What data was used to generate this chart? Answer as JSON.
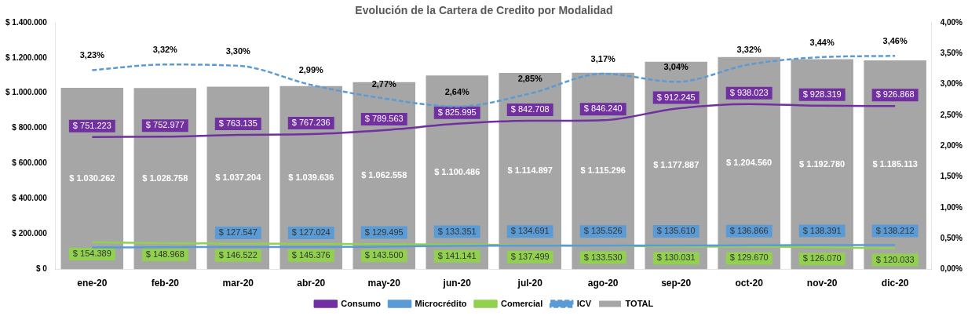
{
  "chart_data": {
    "type": "bar",
    "title": "Evolución de la Cartera de Credito por Modalidad",
    "categories": [
      "ene-20",
      "feb-20",
      "mar-20",
      "abr-20",
      "may-20",
      "jun-20",
      "jul-20",
      "ago-20",
      "sep-20",
      "oct-20",
      "nov-20",
      "dic-20"
    ],
    "series": [
      {
        "name": "TOTAL",
        "color": "#a6a6a6",
        "values": [
          1030262,
          1028758,
          1037204,
          1039636,
          1062558,
          1100486,
          1114897,
          1115296,
          1177887,
          1204560,
          1192780,
          1185113
        ],
        "value_labels": [
          "$ 1.030.262",
          "$ 1.028.758",
          "$ 1.037.204",
          "$ 1.039.636",
          "$ 1.062.558",
          "$ 1.100.486",
          "$ 1.114.897",
          "$ 1.115.296",
          "$ 1.177.887",
          "$ 1.204.560",
          "$ 1.192.780",
          "$ 1.185.113"
        ]
      },
      {
        "name": "Consumo",
        "type": "line",
        "color": "#7030a0",
        "values": [
          751223,
          752977,
          763135,
          767236,
          789563,
          825995,
          842708,
          846240,
          912245,
          938023,
          928319,
          926868
        ],
        "value_labels": [
          "$ 751.223",
          "$ 752.977",
          "$ 763.135",
          "$ 767.236",
          "$ 789.563",
          "$ 825.995",
          "$ 842.708",
          "$ 846.240",
          "$ 912.245",
          "$ 938.023",
          "$ 928.319",
          "$ 926.868"
        ]
      },
      {
        "name": "Microcrédito",
        "type": "line",
        "color": "#5b9bd5",
        "values": [
          125000,
          126000,
          127547,
          127024,
          129495,
          133351,
          134691,
          135526,
          135610,
          136866,
          138391,
          138212
        ],
        "value_labels": [
          null,
          null,
          "$ 127.547",
          "$ 127.024",
          "$ 129.495",
          "$ 133.351",
          "$ 134.691",
          "$ 135.526",
          "$ 135.610",
          "$ 136.866",
          "$ 138.391",
          "$ 138.212"
        ]
      },
      {
        "name": "Comercial",
        "type": "line",
        "color": "#92d050",
        "values": [
          154389,
          148968,
          146522,
          145376,
          143500,
          141141,
          137499,
          133530,
          130031,
          129670,
          126070,
          120033
        ],
        "value_labels": [
          "$ 154.389",
          "$ 148.968",
          "$ 146.522",
          "$ 145.376",
          "$ 143.500",
          "$ 141.141",
          "$ 137.499",
          "$ 133.530",
          "$ 130.031",
          "$ 129.670",
          "$ 126.070",
          "$ 120.033"
        ]
      },
      {
        "name": "ICV",
        "type": "line",
        "axis": "y2",
        "line_style": "dashed",
        "color": "#5b9bd5",
        "values": [
          3.23,
          3.32,
          3.3,
          2.99,
          2.77,
          2.64,
          2.85,
          3.17,
          3.04,
          3.32,
          3.44,
          3.46
        ],
        "value_labels": [
          "3,23%",
          "3,32%",
          "3,30%",
          "2,99%",
          "2,77%",
          "2,64%",
          "2,85%",
          "3,17%",
          "3,04%",
          "3,32%",
          "3,44%",
          "3,46%"
        ]
      }
    ],
    "ylim": [
      0,
      1400000
    ],
    "yticks": [
      {
        "value": 0,
        "label": "$ 0"
      },
      {
        "value": 200000,
        "label": "$ 200.000"
      },
      {
        "value": 400000,
        "label": "$ 400.000"
      },
      {
        "value": 600000,
        "label": "$ 600.000"
      },
      {
        "value": 800000,
        "label": "$ 800.000"
      },
      {
        "value": 1000000,
        "label": "$ 1.000.000"
      },
      {
        "value": 1200000,
        "label": "$ 1.200.000"
      },
      {
        "value": 1400000,
        "label": "$ 1.400.000"
      }
    ],
    "y2lim": [
      0,
      4
    ],
    "y2ticks": [
      {
        "value": 0,
        "label": "0,00%"
      },
      {
        "value": 0.5,
        "label": "0,50%"
      },
      {
        "value": 1,
        "label": "1,00%"
      },
      {
        "value": 1.5,
        "label": "1,50%"
      },
      {
        "value": 2,
        "label": "2,00%"
      },
      {
        "value": 2.5,
        "label": "2,50%"
      },
      {
        "value": 3,
        "label": "3,00%"
      },
      {
        "value": 3.5,
        "label": "3,50%"
      },
      {
        "value": 4,
        "label": "4,00%"
      }
    ],
    "grid": false,
    "legend": "bottom",
    "marker": "none"
  }
}
